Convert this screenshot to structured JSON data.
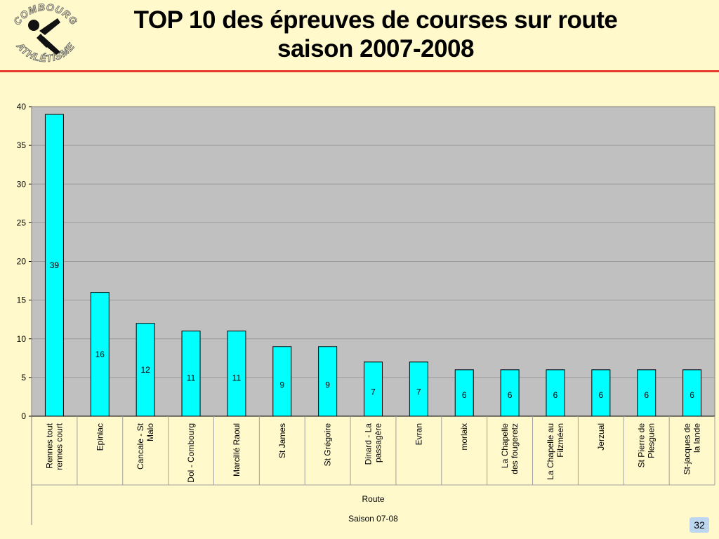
{
  "page": {
    "title_line1": "TOP 10 des épreuves de courses sur route",
    "title_line2": "saison 2007-2008",
    "page_number": "32"
  },
  "logo": {
    "text_top": "COMBOURG",
    "text_bottom": "ATHLÉTISME"
  },
  "colors": {
    "bar": "#00ffff",
    "plot_bg": "#c0c0c0",
    "background": "#fff9cc",
    "accent_rule": "#e53a2c"
  },
  "chart_data": {
    "type": "bar",
    "categories": [
      "Rennes tout rennes court",
      "Epiniac",
      "Cancale - St Malo",
      "Dol - Combourg",
      "Marcillé Raoul",
      "St James",
      "St Grégoire",
      "Dinard - La passagère",
      "Evran",
      "morlaix",
      "La Chapelle des fougeretz",
      "La Chapelle au Filzméen",
      "Jerzual",
      "St Pierre de Plesguen",
      "St-jacques de la lande"
    ],
    "values": [
      39,
      16,
      12,
      11,
      11,
      9,
      9,
      7,
      7,
      6,
      6,
      6,
      6,
      6,
      6
    ],
    "ylim": [
      0,
      40
    ],
    "yticks": [
      0,
      5,
      10,
      15,
      20,
      25,
      30,
      35,
      40
    ],
    "axis_field_label": "Route",
    "axis_group_label": "Saison 07-08",
    "grid": true,
    "data_labels": true
  }
}
